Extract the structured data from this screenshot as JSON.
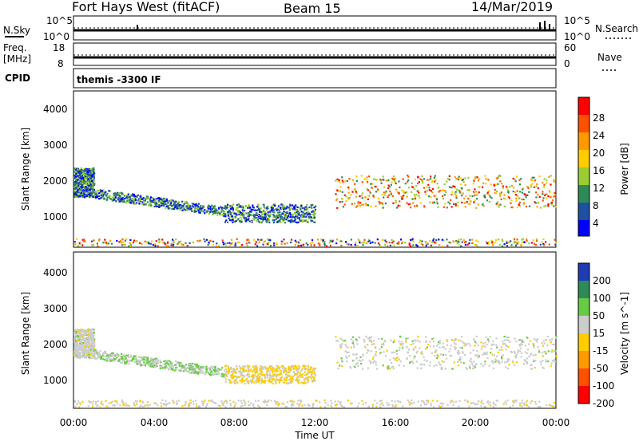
{
  "header": {
    "station": "Fort Hays West (fitACF)",
    "beam": "Beam 15",
    "date": "14/Mar/2019"
  },
  "noise_panel": {
    "left_label": "N.Sky",
    "right_label": "N.Search",
    "left_ticks": [
      "10^5",
      "10^0"
    ],
    "right_ticks": [
      "10^5",
      "10^0"
    ]
  },
  "freq_panel": {
    "left_label_line1": "Freq.",
    "left_label_line2": "[MHz]",
    "right_label": "Nave",
    "left_ticks": [
      "18",
      "8"
    ],
    "right_ticks": [
      "60",
      "0"
    ]
  },
  "cpid_panel": {
    "label": "CPID",
    "text": "themis -3300 IF"
  },
  "x_axis": {
    "label": "Time UT",
    "ticks": [
      "00:00",
      "04:00",
      "08:00",
      "12:00",
      "16:00",
      "20:00",
      "00:00"
    ]
  },
  "power_panel": {
    "ylabel": "Slant Range [km]",
    "yticks": [
      "4000",
      "3000",
      "2000",
      "1000"
    ],
    "colorbar_label": "Power [dB]",
    "colorbar_ticks": [
      "28",
      "24",
      "20",
      "16",
      "12",
      "8",
      "4"
    ],
    "colors": [
      "#ff0000",
      "#ff5000",
      "#ff9900",
      "#ffcc00",
      "#9acd32",
      "#2e8b57",
      "#1e50a0",
      "#0000ff"
    ]
  },
  "velocity_panel": {
    "ylabel": "Slant Range [km]",
    "yticks": [
      "4000",
      "3000",
      "2000",
      "1000"
    ],
    "colorbar_label": "Velocity [m s^-1]",
    "colorbar_ticks": [
      "200",
      "100",
      "50",
      "15",
      "-15",
      "-50",
      "-100",
      "-200"
    ],
    "colors": [
      "#1e3cb4",
      "#2e8b57",
      "#66cc44",
      "#cccccc",
      "#ffcc00",
      "#ff9900",
      "#ff5000",
      "#ff0000"
    ]
  },
  "chart_data": {
    "type": "heatmap",
    "x_range_hours": [
      0,
      24
    ],
    "y_range_km": [
      200,
      4500
    ],
    "scatter_regions": [
      {
        "name": "early-echo",
        "t": [
          0.0,
          1.0
        ],
        "r": [
          1600,
          2400
        ]
      },
      {
        "name": "descending-band",
        "t": [
          1.0,
          7.5
        ],
        "r": [
          1000,
          1700
        ]
      },
      {
        "name": "mid-band",
        "t": [
          7.5,
          12.0
        ],
        "r": [
          900,
          1400
        ]
      },
      {
        "name": "evening-band",
        "t": [
          13.0,
          24.0
        ],
        "r": [
          1300,
          2200
        ]
      },
      {
        "name": "ground-clutter",
        "t": [
          0.0,
          24.0
        ],
        "r": [
          250,
          450
        ]
      }
    ]
  }
}
